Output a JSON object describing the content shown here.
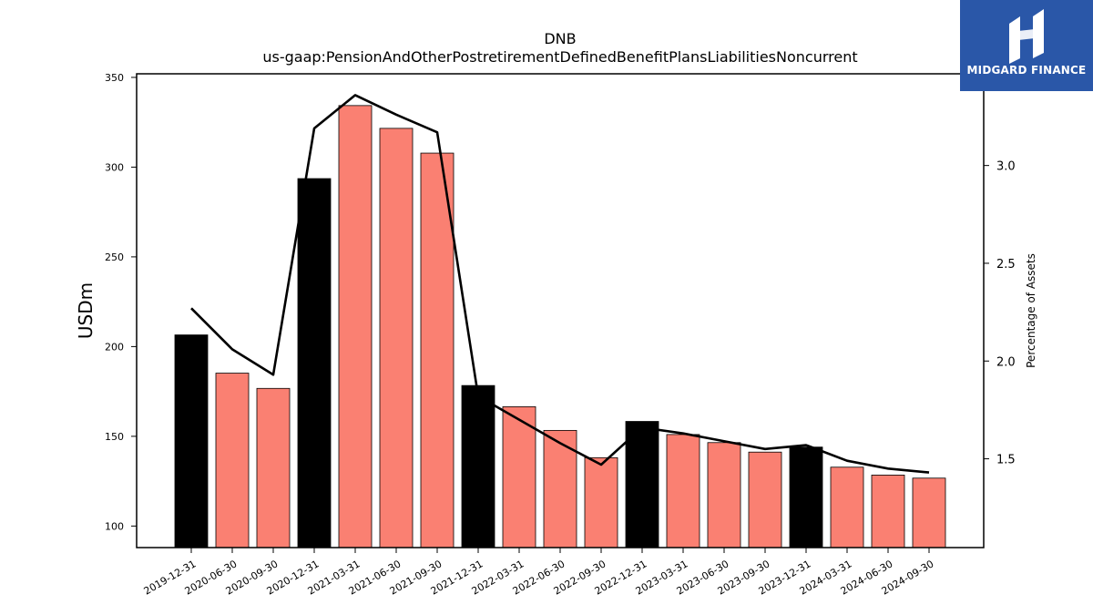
{
  "chart_data": {
    "type": "bar",
    "title": "DNB",
    "subtitle": "us-gaap:PensionAndOtherPostretirementDefinedBenefitPlansLiabilitiesNoncurrent",
    "ylabel": "USDm",
    "y2label": "Percentage of Assets",
    "categories": [
      "2019-12-31",
      "2020-06-30",
      "2020-09-30",
      "2020-12-31",
      "2021-03-31",
      "2021-06-30",
      "2021-09-30",
      "2021-12-31",
      "2022-03-31",
      "2022-06-30",
      "2022-09-30",
      "2022-12-31",
      "2023-03-31",
      "2023-06-30",
      "2023-09-30",
      "2023-12-31",
      "2024-03-31",
      "2024-06-30",
      "2024-09-30"
    ],
    "values": [
      206.5,
      185.2,
      176.7,
      293.6,
      334.3,
      321.6,
      307.8,
      178.3,
      166.5,
      153.3,
      138.1,
      158.3,
      151.0,
      146.5,
      141.2,
      144.0,
      132.8,
      128.4,
      126.7
    ],
    "annual": [
      true,
      false,
      false,
      true,
      false,
      false,
      false,
      true,
      false,
      false,
      false,
      true,
      false,
      false,
      false,
      true,
      false,
      false,
      false
    ],
    "pct_of_assets": [
      2.27,
      2.06,
      1.93,
      3.19,
      3.36,
      3.26,
      3.17,
      1.82,
      1.7,
      1.58,
      1.47,
      1.66,
      1.63,
      1.59,
      1.55,
      1.57,
      1.49,
      1.45,
      1.43
    ],
    "ylim": [
      88,
      352
    ],
    "yticks": [
      100,
      150,
      200,
      250,
      300,
      350
    ],
    "y2lim": [
      1.046,
      3.469
    ],
    "y2ticks": [
      1.5,
      2.0,
      2.5,
      3.0
    ],
    "colors": {
      "annual": "#000000",
      "quarterly": "#fa8072",
      "line": "#000000"
    },
    "grid": false
  },
  "logo": {
    "text": "MIDGARD FINANCE",
    "background": "#2a57a8"
  }
}
